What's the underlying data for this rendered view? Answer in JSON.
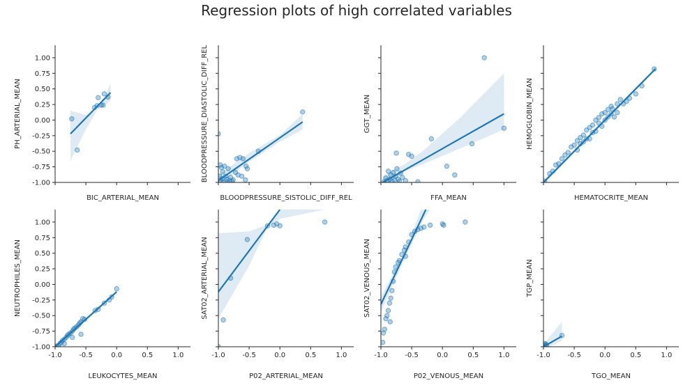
{
  "figure_title": "Regression plots of high correlated variables",
  "chart_data": [
    {
      "type": "scatter",
      "xlabel": "BIC_ARTERIAL_MEAN",
      "ylabel": "PH_ARTERIAL_MEAN",
      "xlim": [
        -1.0,
        1.2
      ],
      "ylim": [
        -1.0,
        1.2
      ],
      "points": [
        [
          -0.73,
          0.02
        ],
        [
          -0.64,
          -0.48
        ],
        [
          -0.36,
          0.2
        ],
        [
          -0.32,
          0.23
        ],
        [
          -0.3,
          0.36
        ],
        [
          -0.25,
          0.24
        ],
        [
          -0.22,
          0.24
        ],
        [
          -0.2,
          0.42
        ],
        [
          -0.14,
          0.37
        ]
      ],
      "line": [
        [
          -0.75,
          -0.22
        ],
        [
          -0.1,
          0.44
        ]
      ],
      "ci": [
        [
          -0.75,
          -0.65
        ],
        [
          -0.5,
          -0.15
        ],
        [
          -0.3,
          0.18
        ],
        [
          -0.2,
          0.33
        ],
        [
          -0.1,
          0.6
        ],
        [
          -0.1,
          0.32
        ],
        [
          -0.2,
          0.23
        ],
        [
          -0.3,
          0.17
        ],
        [
          -0.5,
          0.08
        ],
        [
          -0.75,
          0.15
        ]
      ],
      "show_x_ticks": false,
      "show_y_ticks": true
    },
    {
      "type": "scatter",
      "xlabel": "BLOODPRESSURE_SISTOLIC_DIFF_REL",
      "ylabel": "BLOODPRESSURE_DIASTOLIC_DIFF_REL",
      "xlim": [
        -1.0,
        1.2
      ],
      "ylim": [
        -1.0,
        1.2
      ],
      "points": [
        [
          -1.0,
          -0.22
        ],
        [
          -0.97,
          -0.72
        ],
        [
          -0.95,
          -0.76
        ],
        [
          -0.93,
          -0.83
        ],
        [
          -0.9,
          -0.74
        ],
        [
          -0.88,
          -0.9
        ],
        [
          -0.86,
          -0.95
        ],
        [
          -0.84,
          -0.78
        ],
        [
          -0.8,
          -0.92
        ],
        [
          -0.78,
          -0.98
        ],
        [
          -0.76,
          -0.96
        ],
        [
          -0.72,
          -0.84
        ],
        [
          -0.7,
          -0.62
        ],
        [
          -0.68,
          -0.88
        ],
        [
          -0.65,
          -0.6
        ],
        [
          -0.62,
          -0.9
        ],
        [
          -0.6,
          -0.62
        ],
        [
          -0.56,
          -0.96
        ],
        [
          -0.55,
          -0.74
        ],
        [
          -0.53,
          -0.78
        ],
        [
          -0.35,
          -0.5
        ],
        [
          0.37,
          0.13
        ],
        [
          -0.96,
          -0.98
        ],
        [
          -0.92,
          -0.99
        ],
        [
          -0.86,
          -0.99
        ],
        [
          -0.82,
          -0.97
        ],
        [
          -0.98,
          -0.9
        ],
        [
          -0.94,
          -0.94
        ]
      ],
      "line": [
        [
          -1.0,
          -0.97
        ],
        [
          0.37,
          -0.03
        ]
      ],
      "ci": [
        [
          -1.0,
          -1.05
        ],
        [
          -0.5,
          -0.67
        ],
        [
          0.0,
          -0.35
        ],
        [
          0.37,
          -0.15
        ],
        [
          0.37,
          0.1
        ],
        [
          0.0,
          -0.24
        ],
        [
          -0.5,
          -0.53
        ],
        [
          -1.0,
          -0.88
        ]
      ],
      "show_x_ticks": false,
      "show_y_ticks": false
    },
    {
      "type": "scatter",
      "xlabel": "FFA_MEAN",
      "ylabel": "GGT_MEAN",
      "xlim": [
        -1.0,
        1.2
      ],
      "ylim": [
        -1.0,
        1.2
      ],
      "points": [
        [
          -0.95,
          -0.99
        ],
        [
          -0.92,
          -0.93
        ],
        [
          -0.9,
          -0.97
        ],
        [
          -0.88,
          -0.82
        ],
        [
          -0.86,
          -0.95
        ],
        [
          -0.84,
          -0.88
        ],
        [
          -0.82,
          -0.98
        ],
        [
          -0.8,
          -0.84
        ],
        [
          -0.78,
          -0.96
        ],
        [
          -0.76,
          -0.9
        ],
        [
          -0.74,
          -0.78
        ],
        [
          -0.72,
          -0.95
        ],
        [
          -0.7,
          -0.98
        ],
        [
          -0.68,
          -0.85
        ],
        [
          -0.65,
          -0.92
        ],
        [
          -0.75,
          -0.53
        ],
        [
          -0.6,
          -0.97
        ],
        [
          -0.55,
          -0.55
        ],
        [
          -0.5,
          -0.58
        ],
        [
          -0.4,
          -0.99
        ],
        [
          -0.18,
          -0.3
        ],
        [
          0.07,
          -0.74
        ],
        [
          0.2,
          -0.88
        ],
        [
          0.48,
          -0.38
        ],
        [
          0.68,
          1.0
        ],
        [
          1.0,
          -0.13
        ]
      ],
      "line": [
        [
          -0.97,
          -1.0
        ],
        [
          1.0,
          0.1
        ]
      ],
      "ci": [
        [
          -0.97,
          -1.1
        ],
        [
          -0.6,
          -0.82
        ],
        [
          -0.3,
          -0.7
        ],
        [
          0.3,
          -0.45
        ],
        [
          1.0,
          -0.15
        ],
        [
          1.0,
          0.75
        ],
        [
          0.3,
          0.05
        ],
        [
          -0.3,
          -0.48
        ],
        [
          -0.6,
          -0.7
        ],
        [
          -0.97,
          -0.9
        ]
      ],
      "show_x_ticks": false,
      "show_y_ticks": false
    },
    {
      "type": "scatter",
      "xlabel": "HEMATOCRITE_MEAN",
      "ylabel": "HEMOGLOBIN_MEAN",
      "xlim": [
        -1.0,
        1.2
      ],
      "ylim": [
        -1.0,
        1.2
      ],
      "points": [
        [
          -0.98,
          -0.98
        ],
        [
          -0.9,
          -0.86
        ],
        [
          -0.85,
          -0.82
        ],
        [
          -0.8,
          -0.72
        ],
        [
          -0.75,
          -0.7
        ],
        [
          -0.7,
          -0.62
        ],
        [
          -0.65,
          -0.56
        ],
        [
          -0.6,
          -0.52
        ],
        [
          -0.55,
          -0.43
        ],
        [
          -0.5,
          -0.4
        ],
        [
          -0.45,
          -0.33
        ],
        [
          -0.4,
          -0.28
        ],
        [
          -0.35,
          -0.24
        ],
        [
          -0.3,
          -0.16
        ],
        [
          -0.25,
          -0.12
        ],
        [
          -0.2,
          -0.08
        ],
        [
          -0.15,
          0.0
        ],
        [
          -0.1,
          0.04
        ],
        [
          -0.05,
          0.1
        ],
        [
          0.0,
          0.12
        ],
        [
          0.05,
          0.17
        ],
        [
          0.1,
          0.22
        ],
        [
          0.2,
          0.26
        ],
        [
          0.25,
          0.33
        ],
        [
          0.3,
          0.26
        ],
        [
          0.35,
          0.3
        ],
        [
          0.5,
          0.42
        ],
        [
          0.8,
          0.82
        ],
        [
          -0.3,
          -0.3
        ],
        [
          -0.2,
          -0.2
        ],
        [
          0.0,
          0.0
        ],
        [
          0.1,
          0.1
        ],
        [
          -0.4,
          -0.38
        ],
        [
          -0.1,
          -0.05
        ],
        [
          0.15,
          0.05
        ],
        [
          -0.25,
          -0.3
        ],
        [
          -0.05,
          -0.1
        ],
        [
          0.05,
          0.05
        ],
        [
          -0.35,
          -0.35
        ],
        [
          0.12,
          0.18
        ],
        [
          -0.15,
          -0.18
        ],
        [
          0.2,
          0.12
        ],
        [
          -0.45,
          -0.48
        ],
        [
          0.4,
          0.35
        ],
        [
          0.6,
          0.55
        ]
      ],
      "line": [
        [
          -1.0,
          -1.0
        ],
        [
          0.82,
          0.82
        ]
      ],
      "ci": [
        [
          -1.0,
          -1.03
        ],
        [
          0.82,
          0.8
        ],
        [
          0.82,
          0.85
        ],
        [
          -1.0,
          -0.97
        ]
      ],
      "show_x_ticks": false,
      "show_y_ticks": false
    },
    {
      "type": "scatter",
      "xlabel": "LEUKOCYTES_MEAN",
      "ylabel": "NEUTROPHILES_MEAN",
      "xlim": [
        -1.0,
        1.2
      ],
      "ylim": [
        -1.0,
        1.2
      ],
      "points": [
        [
          -0.98,
          -0.99
        ],
        [
          -0.95,
          -0.98
        ],
        [
          -0.92,
          -0.95
        ],
        [
          -0.9,
          -0.93
        ],
        [
          -0.88,
          -0.9
        ],
        [
          -0.85,
          -0.88
        ],
        [
          -0.82,
          -0.85
        ],
        [
          -0.8,
          -0.82
        ],
        [
          -0.78,
          -0.8
        ],
        [
          -0.75,
          -0.78
        ],
        [
          -0.72,
          -0.75
        ],
        [
          -0.7,
          -0.72
        ],
        [
          -0.68,
          -0.7
        ],
        [
          -0.65,
          -0.68
        ],
        [
          -0.62,
          -0.65
        ],
        [
          -0.6,
          -0.62
        ],
        [
          -0.58,
          -0.6
        ],
        [
          -0.55,
          -0.55
        ],
        [
          -0.52,
          -0.56
        ],
        [
          -0.35,
          -0.42
        ],
        [
          -0.3,
          -0.4
        ],
        [
          -0.2,
          -0.3
        ],
        [
          -0.12,
          -0.25
        ],
        [
          -0.08,
          -0.2
        ],
        [
          0.0,
          -0.07
        ],
        [
          -0.58,
          -0.8
        ],
        [
          -0.72,
          -0.85
        ],
        [
          -0.85,
          -0.95
        ]
      ],
      "line": [
        [
          -1.0,
          -1.0
        ],
        [
          0.0,
          -0.12
        ]
      ],
      "ci": [
        [
          -1.0,
          -1.02
        ],
        [
          0.0,
          -0.14
        ],
        [
          0.0,
          -0.1
        ],
        [
          -1.0,
          -0.98
        ]
      ],
      "show_x_ticks": true,
      "show_y_ticks": true
    },
    {
      "type": "scatter",
      "xlabel": "P02_ARTERIAL_MEAN",
      "ylabel": "SAT02_ARTERIAL_MEAN",
      "xlim": [
        -1.0,
        1.2
      ],
      "ylim": [
        -1.0,
        1.2
      ],
      "points": [
        [
          -1.0,
          -1.0
        ],
        [
          -0.92,
          -0.57
        ],
        [
          -0.8,
          0.1
        ],
        [
          -0.53,
          0.72
        ],
        [
          -0.2,
          0.94
        ],
        [
          -0.1,
          0.95
        ],
        [
          -0.05,
          0.97
        ],
        [
          0.0,
          0.94
        ],
        [
          0.73,
          1.0
        ]
      ],
      "line": [
        [
          -1.0,
          -0.12
        ],
        [
          0.0,
          1.2
        ]
      ],
      "ci": [
        [
          -1.0,
          -0.55
        ],
        [
          -0.5,
          0.3
        ],
        [
          -0.2,
          0.92
        ],
        [
          0.0,
          1.05
        ],
        [
          0.73,
          1.2
        ],
        [
          0.73,
          1.2
        ],
        [
          0.0,
          1.2
        ],
        [
          -0.2,
          0.96
        ],
        [
          -0.5,
          0.85
        ],
        [
          -1.0,
          0.82
        ]
      ],
      "show_x_ticks": true,
      "show_y_ticks": false
    },
    {
      "type": "scatter",
      "xlabel": "P02_VENOUS_MEAN",
      "ylabel": "SAT02_VENOUS_MEAN",
      "xlim": [
        -1.0,
        1.2
      ],
      "ylim": [
        -1.0,
        1.2
      ],
      "points": [
        [
          -0.97,
          -0.93
        ],
        [
          -0.96,
          -0.78
        ],
        [
          -0.94,
          -0.72
        ],
        [
          -0.92,
          -0.55
        ],
        [
          -0.9,
          -0.5
        ],
        [
          -0.88,
          -0.42
        ],
        [
          -0.86,
          -0.3
        ],
        [
          -0.84,
          -0.22
        ],
        [
          -0.82,
          -0.1
        ],
        [
          -0.8,
          0.05
        ],
        [
          -0.78,
          0.2
        ],
        [
          -0.76,
          0.28
        ],
        [
          -0.72,
          0.35
        ],
        [
          -0.7,
          0.38
        ],
        [
          -0.66,
          0.48
        ],
        [
          -0.62,
          0.55
        ],
        [
          -0.6,
          0.6
        ],
        [
          -0.55,
          0.68
        ],
        [
          -0.5,
          0.8
        ],
        [
          -0.45,
          0.85
        ],
        [
          -0.4,
          0.88
        ],
        [
          -0.35,
          0.9
        ],
        [
          -0.3,
          0.92
        ],
        [
          -0.2,
          0.95
        ],
        [
          0.0,
          0.97
        ],
        [
          0.02,
          0.95
        ],
        [
          0.37,
          1.0
        ],
        [
          -0.85,
          -0.6
        ],
        [
          -0.6,
          0.45
        ]
      ],
      "line": [
        [
          -1.0,
          -0.32
        ],
        [
          -0.27,
          1.2
        ]
      ],
      "ci": [
        [
          -1.0,
          -0.45
        ],
        [
          -0.6,
          0.45
        ],
        [
          -0.3,
          1.05
        ],
        [
          -0.2,
          1.2
        ],
        [
          -0.35,
          1.2
        ],
        [
          -0.6,
          0.55
        ],
        [
          -1.0,
          -0.2
        ]
      ],
      "show_x_ticks": true,
      "show_y_ticks": false
    },
    {
      "type": "scatter",
      "xlabel": "TGO_MEAN",
      "ylabel": "TGP_MEAN",
      "xlim": [
        -1.0,
        1.2
      ],
      "ylim": [
        -1.0,
        1.2
      ],
      "points": [
        [
          -0.99,
          -0.98
        ],
        [
          -0.98,
          -0.96
        ],
        [
          -0.97,
          -0.95
        ],
        [
          -0.96,
          -0.99
        ],
        [
          -0.95,
          -0.97
        ],
        [
          -0.7,
          -0.82
        ]
      ],
      "line": [
        [
          -1.0,
          -1.0
        ],
        [
          -0.7,
          -0.83
        ]
      ],
      "ci": [
        [
          -1.0,
          -1.05
        ],
        [
          -0.7,
          -0.9
        ],
        [
          -0.7,
          -0.6
        ],
        [
          -1.0,
          -0.96
        ]
      ],
      "show_x_ticks": true,
      "show_y_ticks": false
    }
  ]
}
